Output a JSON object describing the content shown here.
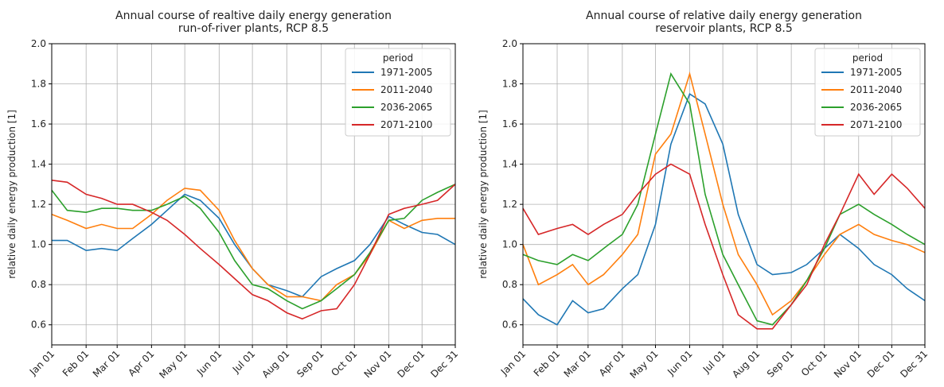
{
  "chart_data": [
    {
      "type": "line",
      "title": "Annual course of realtive daily energy generation",
      "subtitle": "run-of-river plants, RCP 8.5",
      "ylabel": "relative daily energy production [1]",
      "legend_title": "period",
      "legend": "upper right",
      "grid": true,
      "x": [
        1,
        15,
        32,
        46,
        60,
        74,
        91,
        105,
        121,
        135,
        152,
        166,
        182,
        196,
        213,
        227,
        244,
        258,
        274,
        288,
        305,
        319,
        335,
        349,
        365
      ],
      "xlim": [
        1,
        365
      ],
      "xticks": [
        {
          "value": 1,
          "label": "Jan 01"
        },
        {
          "value": 32,
          "label": "Feb 01"
        },
        {
          "value": 60,
          "label": "Mar 01"
        },
        {
          "value": 91,
          "label": "Apr 01"
        },
        {
          "value": 121,
          "label": "May 01"
        },
        {
          "value": 152,
          "label": "Jun 01"
        },
        {
          "value": 182,
          "label": "Jul 01"
        },
        {
          "value": 213,
          "label": "Aug 01"
        },
        {
          "value": 244,
          "label": "Sep 01"
        },
        {
          "value": 274,
          "label": "Oct 01"
        },
        {
          "value": 305,
          "label": "Nov 01"
        },
        {
          "value": 335,
          "label": "Dec 01"
        },
        {
          "value": 365,
          "label": "Dec 31"
        }
      ],
      "ylim": [
        0.5,
        2.0
      ],
      "yticks": [
        0.6,
        0.8,
        {
          "value": 1.0,
          "label": "1.0"
        },
        1.2,
        1.4,
        1.6,
        1.8,
        {
          "value": 2.0,
          "label": "2.0"
        }
      ],
      "series": [
        {
          "name": "1971-2005",
          "color": "#1f77b4",
          "values": [
            1.02,
            1.02,
            0.97,
            0.98,
            0.97,
            1.03,
            1.1,
            1.17,
            1.25,
            1.22,
            1.13,
            1.0,
            0.88,
            0.8,
            0.77,
            0.74,
            0.84,
            0.88,
            0.92,
            1.0,
            1.14,
            1.1,
            1.06,
            1.05,
            1.0
          ]
        },
        {
          "name": "2011-2040",
          "color": "#ff7f0e",
          "values": [
            1.15,
            1.12,
            1.08,
            1.1,
            1.08,
            1.08,
            1.15,
            1.22,
            1.28,
            1.27,
            1.17,
            1.02,
            0.88,
            0.8,
            0.74,
            0.74,
            0.72,
            0.8,
            0.85,
            0.95,
            1.12,
            1.08,
            1.12,
            1.13,
            1.13
          ]
        },
        {
          "name": "2036-2065",
          "color": "#2ca02c",
          "values": [
            1.27,
            1.17,
            1.16,
            1.18,
            1.18,
            1.17,
            1.17,
            1.2,
            1.24,
            1.18,
            1.06,
            0.92,
            0.8,
            0.78,
            0.72,
            0.68,
            0.72,
            0.78,
            0.85,
            0.96,
            1.12,
            1.13,
            1.22,
            1.26,
            1.3
          ]
        },
        {
          "name": "2071-2100",
          "color": "#d62728",
          "values": [
            1.32,
            1.31,
            1.25,
            1.23,
            1.2,
            1.2,
            1.16,
            1.12,
            1.05,
            0.98,
            0.9,
            0.83,
            0.75,
            0.72,
            0.66,
            0.63,
            0.67,
            0.68,
            0.8,
            0.95,
            1.15,
            1.18,
            1.2,
            1.22,
            1.3
          ]
        }
      ]
    },
    {
      "type": "line",
      "title": "Annual course of relative daily energy generation",
      "subtitle": "reservoir plants, RCP 8.5",
      "ylabel": "relative daily energy production [1]",
      "legend_title": "period",
      "legend": "upper right",
      "grid": true,
      "x": [
        1,
        15,
        32,
        46,
        60,
        74,
        91,
        105,
        121,
        135,
        152,
        166,
        182,
        196,
        213,
        227,
        244,
        258,
        274,
        288,
        305,
        319,
        335,
        349,
        365
      ],
      "xlim": [
        1,
        365
      ],
      "xticks": [
        {
          "value": 1,
          "label": "Jan 01"
        },
        {
          "value": 32,
          "label": "Feb 01"
        },
        {
          "value": 60,
          "label": "Mar 01"
        },
        {
          "value": 91,
          "label": "Apr 01"
        },
        {
          "value": 121,
          "label": "May 01"
        },
        {
          "value": 152,
          "label": "Jun 01"
        },
        {
          "value": 182,
          "label": "Jul 01"
        },
        {
          "value": 213,
          "label": "Aug 01"
        },
        {
          "value": 244,
          "label": "Sep 01"
        },
        {
          "value": 274,
          "label": "Oct 01"
        },
        {
          "value": 305,
          "label": "Nov 01"
        },
        {
          "value": 335,
          "label": "Dec 01"
        },
        {
          "value": 365,
          "label": "Dec 31"
        }
      ],
      "ylim": [
        0.5,
        2.0
      ],
      "yticks": [
        0.6,
        0.8,
        {
          "value": 1.0,
          "label": "1.0"
        },
        1.2,
        1.4,
        1.6,
        1.8,
        {
          "value": 2.0,
          "label": "2.0"
        }
      ],
      "series": [
        {
          "name": "1971-2005",
          "color": "#1f77b4",
          "values": [
            0.73,
            0.65,
            0.6,
            0.72,
            0.66,
            0.68,
            0.78,
            0.85,
            1.1,
            1.5,
            1.75,
            1.7,
            1.5,
            1.15,
            0.9,
            0.85,
            0.86,
            0.9,
            0.98,
            1.05,
            0.98,
            0.9,
            0.85,
            0.78,
            0.72
          ]
        },
        {
          "name": "2011-2040",
          "color": "#ff7f0e",
          "values": [
            1.0,
            0.8,
            0.85,
            0.9,
            0.8,
            0.85,
            0.95,
            1.05,
            1.45,
            1.55,
            1.85,
            1.55,
            1.2,
            0.95,
            0.8,
            0.65,
            0.72,
            0.82,
            0.95,
            1.05,
            1.1,
            1.05,
            1.02,
            1.0,
            0.96
          ]
        },
        {
          "name": "2036-2065",
          "color": "#2ca02c",
          "values": [
            0.95,
            0.92,
            0.9,
            0.95,
            0.92,
            0.98,
            1.05,
            1.2,
            1.55,
            1.85,
            1.7,
            1.25,
            0.95,
            0.8,
            0.62,
            0.6,
            0.7,
            0.82,
            0.98,
            1.15,
            1.2,
            1.15,
            1.1,
            1.05,
            1.0
          ]
        },
        {
          "name": "2071-2100",
          "color": "#d62728",
          "values": [
            1.18,
            1.05,
            1.08,
            1.1,
            1.05,
            1.1,
            1.15,
            1.25,
            1.35,
            1.4,
            1.35,
            1.1,
            0.85,
            0.65,
            0.58,
            0.58,
            0.7,
            0.8,
            1.0,
            1.15,
            1.35,
            1.25,
            1.35,
            1.28,
            1.18
          ]
        }
      ]
    }
  ]
}
